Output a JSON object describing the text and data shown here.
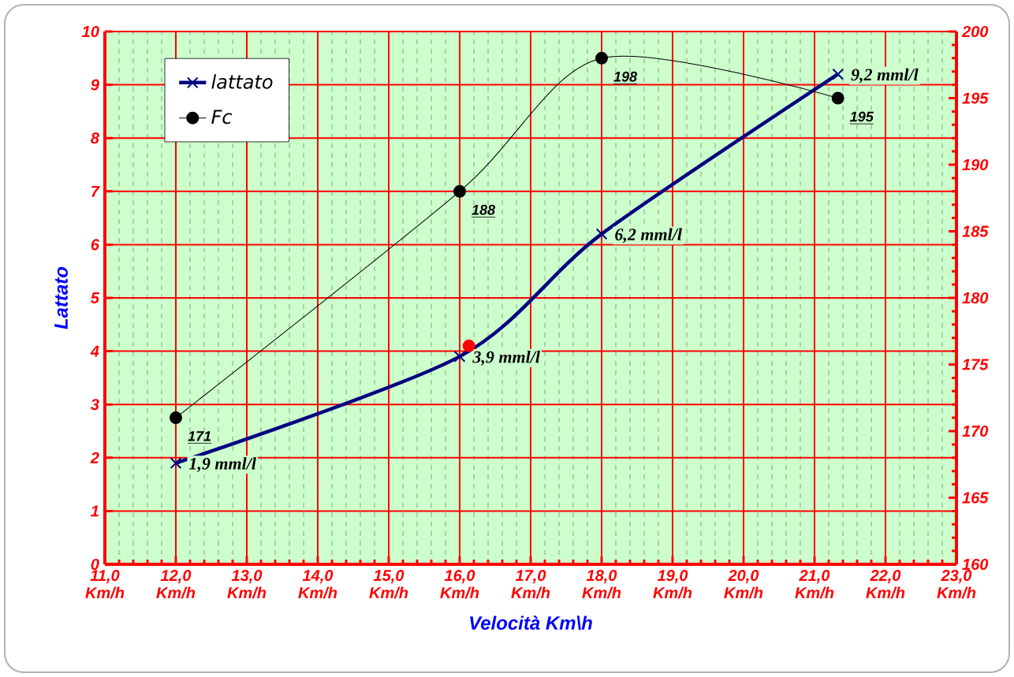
{
  "chart_data": {
    "type": "line",
    "xlabel": "Velocità Km\\h",
    "ylabel": "Lattato",
    "xlim": [
      11,
      23
    ],
    "ylim": [
      0,
      10
    ],
    "y2lim": [
      160,
      200
    ],
    "xticks": [
      {
        "value": 11,
        "label": "11,0 Km/h"
      },
      {
        "value": 12,
        "label": "12,0 Km/h"
      },
      {
        "value": 13,
        "label": "13,0 Km/h"
      },
      {
        "value": 14,
        "label": "14,0 Km/h"
      },
      {
        "value": 15,
        "label": "15,0 Km/h"
      },
      {
        "value": 16,
        "label": "16,0 Km/h"
      },
      {
        "value": 17,
        "label": "17,0 Km/h"
      },
      {
        "value": 18,
        "label": "18,0 Km/h"
      },
      {
        "value": 19,
        "label": "19,0 Km/h"
      },
      {
        "value": 20,
        "label": "20,0 Km/h"
      },
      {
        "value": 21,
        "label": "21,0 Km/h"
      },
      {
        "value": 22,
        "label": "22,0 Km/h"
      },
      {
        "value": 23,
        "label": "23,0 Km/h"
      }
    ],
    "yticks": [
      0,
      1,
      2,
      3,
      4,
      5,
      6,
      7,
      8,
      9,
      10
    ],
    "y2ticks": [
      160,
      165,
      170,
      175,
      180,
      185,
      190,
      195,
      200
    ],
    "grid": true,
    "legend": "top left",
    "series": [
      {
        "name": "lattato",
        "color": "#000080",
        "marker": "cross",
        "x": [
          12,
          16,
          18,
          21.33
        ],
        "values": [
          1.9,
          3.9,
          6.2,
          9.2
        ],
        "value_labels": [
          "1,9 mml/l",
          "3,9 mml/l",
          "6,2 mml/l",
          "9,2 mml/l"
        ]
      },
      {
        "name": "Fc",
        "axis": "y2",
        "color": "#000000",
        "marker": "circle",
        "x": [
          12,
          16,
          18,
          21.33
        ],
        "values": [
          171,
          188,
          198,
          195
        ],
        "value_labels": [
          "171",
          "188",
          "198",
          "195"
        ]
      },
      {
        "type": "scatter",
        "color": "#ff0000",
        "marker": "circle",
        "x": [
          16.13
        ],
        "values": [
          4.1
        ]
      }
    ]
  }
}
